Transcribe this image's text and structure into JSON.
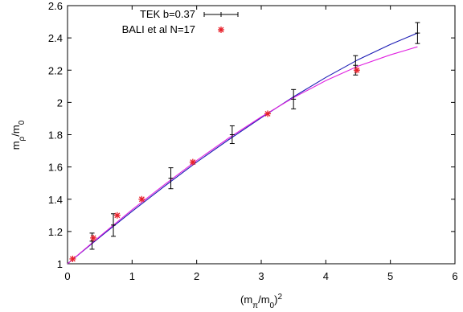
{
  "chart_data": {
    "type": "scatter",
    "xlabel": "(mπ/m0)2",
    "ylabel": "mρ/m0",
    "xlim": [
      0,
      6
    ],
    "ylim": [
      1,
      2.6
    ],
    "x_ticks": [
      "0",
      "1",
      "2",
      "3",
      "4",
      "5",
      "6"
    ],
    "y_ticks": [
      "1",
      "1.2",
      "1.4",
      "1.6",
      "1.8",
      "2",
      "2.2",
      "2.4",
      "2.6"
    ],
    "grid": false,
    "legend_position": "top-center",
    "series": [
      {
        "name": "TEK b=0.37",
        "kind": "errorbar",
        "color": "#000000",
        "x": [
          0.38,
          0.71,
          1.6,
          2.55,
          3.5,
          4.46,
          5.42
        ],
        "y": [
          1.14,
          1.24,
          1.53,
          1.8,
          2.02,
          2.23,
          2.43
        ],
        "err": [
          0.05,
          0.07,
          0.065,
          0.055,
          0.06,
          0.06,
          0.065
        ]
      },
      {
        "name": "BALI et al N=17",
        "kind": "points",
        "color": "#e8202a",
        "x": [
          0.08,
          0.4,
          0.77,
          1.15,
          1.94,
          3.1,
          4.48
        ],
        "y": [
          1.03,
          1.16,
          1.3,
          1.4,
          1.63,
          1.93,
          2.2
        ]
      }
    ],
    "fits": [
      {
        "kind": "curve",
        "color": "#1a1ab4",
        "x": [
          0,
          0.5,
          1,
          1.5,
          2,
          2.5,
          3,
          3.5,
          4,
          4.5,
          5,
          5.42
        ],
        "y": [
          1.0,
          1.165,
          1.325,
          1.48,
          1.63,
          1.77,
          1.905,
          2.035,
          2.155,
          2.265,
          2.36,
          2.43
        ]
      },
      {
        "kind": "curve",
        "color": "#e020e0",
        "x": [
          0,
          0.5,
          1,
          1.5,
          2,
          2.5,
          3,
          3.5,
          4,
          4.5,
          5,
          5.42
        ],
        "y": [
          1.0,
          1.17,
          1.335,
          1.49,
          1.64,
          1.78,
          1.91,
          2.03,
          2.135,
          2.225,
          2.295,
          2.345
        ]
      }
    ]
  }
}
